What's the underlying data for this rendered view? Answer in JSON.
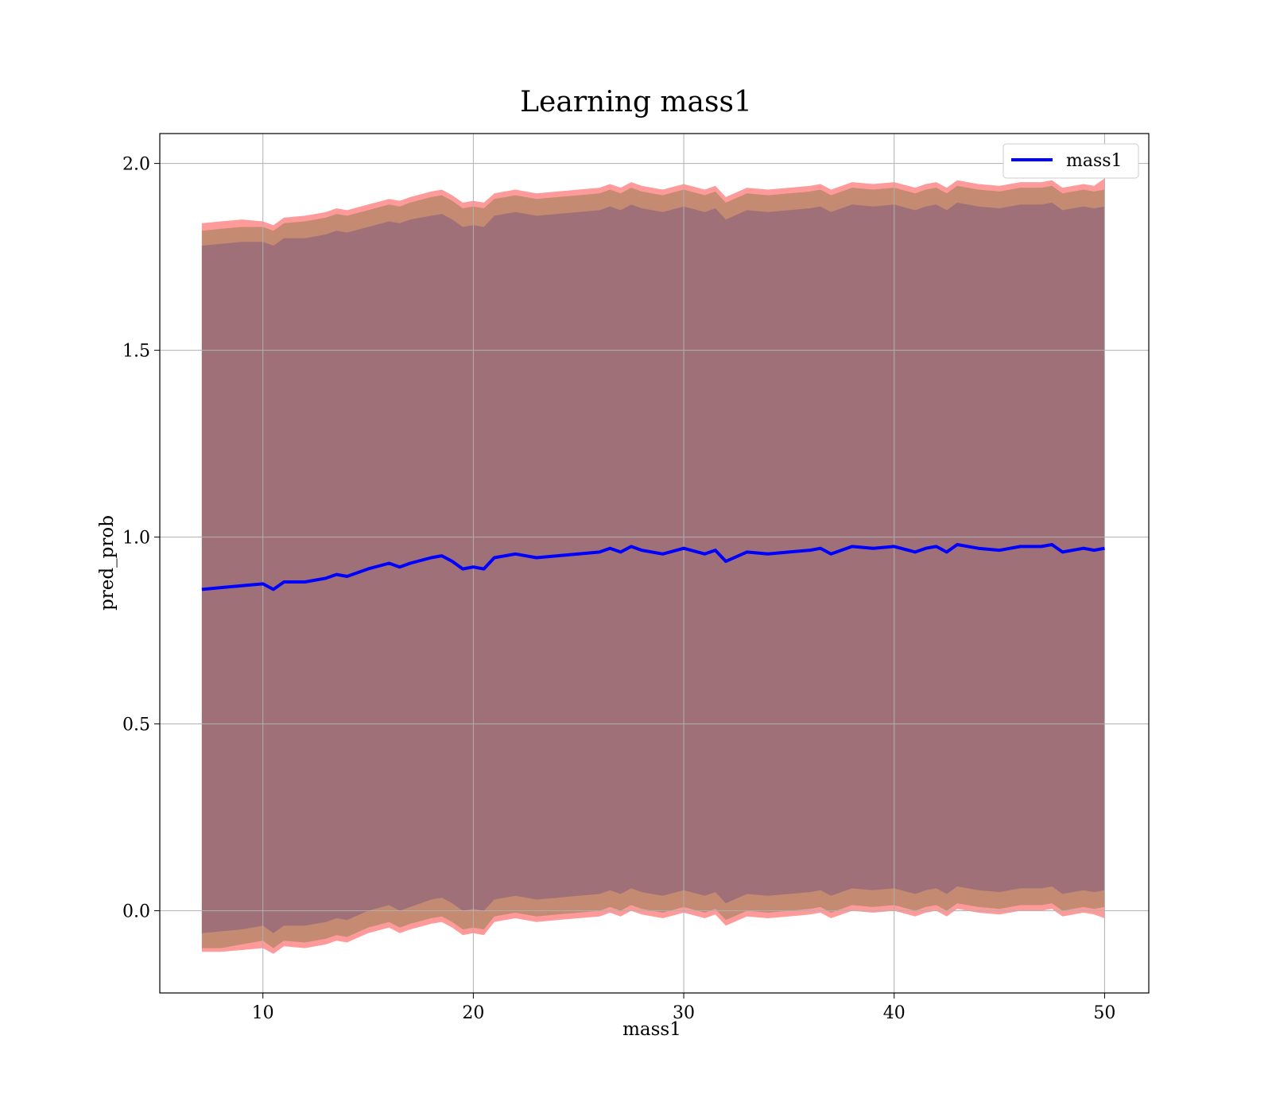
{
  "chart_data": {
    "type": "line",
    "title": "Learning mass1",
    "xlabel": "mass1",
    "ylabel": "pred_prob",
    "xlim": [
      5.1,
      52.1
    ],
    "ylim": [
      -0.22,
      2.08
    ],
    "xticks": [
      10,
      20,
      30,
      40,
      50
    ],
    "yticks": [
      0.0,
      0.5,
      1.0,
      1.5,
      2.0
    ],
    "xtick_labels": [
      "10",
      "20",
      "30",
      "40",
      "50"
    ],
    "ytick_labels": [
      "0.0",
      "0.5",
      "1.0",
      "1.5",
      "2.0"
    ],
    "grid": true,
    "legend_position": "top-right",
    "legend": [
      "mass1"
    ],
    "series": [
      {
        "name": "mass1",
        "color": "#0000ff",
        "x": [
          7.1,
          8.0,
          9.0,
          10.0,
          10.5,
          11.0,
          12.0,
          13.0,
          13.5,
          14.0,
          15.0,
          16.0,
          16.5,
          17.0,
          18.0,
          18.5,
          19.0,
          19.5,
          20.0,
          20.5,
          21.0,
          22.0,
          23.0,
          24.0,
          25.0,
          26.0,
          26.5,
          27.0,
          27.5,
          28.0,
          29.0,
          30.0,
          31.0,
          31.5,
          32.0,
          33.0,
          34.0,
          35.0,
          36.0,
          36.5,
          37.0,
          38.0,
          39.0,
          40.0,
          41.0,
          41.5,
          42.0,
          42.5,
          43.0,
          44.0,
          45.0,
          46.0,
          47.0,
          47.5,
          48.0,
          49.0,
          49.5,
          50.0
        ],
        "mean": [
          0.86,
          0.865,
          0.87,
          0.875,
          0.86,
          0.88,
          0.88,
          0.89,
          0.9,
          0.895,
          0.915,
          0.93,
          0.92,
          0.93,
          0.945,
          0.95,
          0.935,
          0.915,
          0.92,
          0.915,
          0.945,
          0.955,
          0.945,
          0.95,
          0.955,
          0.96,
          0.97,
          0.96,
          0.975,
          0.965,
          0.955,
          0.97,
          0.955,
          0.965,
          0.935,
          0.96,
          0.955,
          0.96,
          0.965,
          0.97,
          0.955,
          0.975,
          0.97,
          0.975,
          0.96,
          0.97,
          0.975,
          0.96,
          0.98,
          0.97,
          0.965,
          0.975,
          0.975,
          0.98,
          0.96,
          0.97,
          0.965,
          0.97
        ],
        "std1_upper": [
          1.78,
          1.785,
          1.79,
          1.79,
          1.78,
          1.8,
          1.8,
          1.81,
          1.82,
          1.815,
          1.83,
          1.845,
          1.84,
          1.85,
          1.86,
          1.865,
          1.85,
          1.83,
          1.835,
          1.83,
          1.86,
          1.87,
          1.86,
          1.865,
          1.87,
          1.875,
          1.885,
          1.875,
          1.89,
          1.88,
          1.87,
          1.885,
          1.87,
          1.88,
          1.85,
          1.875,
          1.87,
          1.875,
          1.88,
          1.885,
          1.87,
          1.89,
          1.885,
          1.89,
          1.875,
          1.885,
          1.89,
          1.875,
          1.895,
          1.885,
          1.88,
          1.89,
          1.89,
          1.895,
          1.875,
          1.885,
          1.88,
          1.885
        ],
        "std1_lower": [
          -0.06,
          -0.055,
          -0.05,
          -0.04,
          -0.06,
          -0.04,
          -0.04,
          -0.03,
          -0.02,
          -0.025,
          0.0,
          0.015,
          0.0,
          0.01,
          0.03,
          0.035,
          0.02,
          0.0,
          0.005,
          0.0,
          0.03,
          0.04,
          0.03,
          0.035,
          0.04,
          0.045,
          0.055,
          0.045,
          0.06,
          0.05,
          0.04,
          0.055,
          0.04,
          0.05,
          0.02,
          0.045,
          0.04,
          0.045,
          0.05,
          0.055,
          0.04,
          0.06,
          0.055,
          0.06,
          0.045,
          0.055,
          0.06,
          0.045,
          0.065,
          0.055,
          0.05,
          0.06,
          0.06,
          0.065,
          0.045,
          0.055,
          0.05,
          0.055
        ],
        "std2_upper": [
          1.82,
          1.825,
          1.83,
          1.83,
          1.82,
          1.84,
          1.845,
          1.855,
          1.865,
          1.86,
          1.875,
          1.89,
          1.885,
          1.895,
          1.91,
          1.915,
          1.9,
          1.88,
          1.885,
          1.88,
          1.905,
          1.915,
          1.905,
          1.91,
          1.915,
          1.92,
          1.93,
          1.92,
          1.935,
          1.925,
          1.915,
          1.93,
          1.915,
          1.925,
          1.895,
          1.92,
          1.915,
          1.92,
          1.925,
          1.93,
          1.915,
          1.935,
          1.93,
          1.935,
          1.92,
          1.93,
          1.935,
          1.92,
          1.94,
          1.93,
          1.925,
          1.935,
          1.935,
          1.94,
          1.92,
          1.93,
          1.925,
          1.93
        ],
        "std2_lower": [
          -0.1,
          -0.1,
          -0.09,
          -0.08,
          -0.1,
          -0.08,
          -0.085,
          -0.075,
          -0.065,
          -0.07,
          -0.045,
          -0.03,
          -0.045,
          -0.035,
          -0.02,
          -0.015,
          -0.03,
          -0.05,
          -0.045,
          -0.05,
          -0.015,
          -0.005,
          -0.015,
          -0.01,
          -0.005,
          0.0,
          0.01,
          0.0,
          0.015,
          0.005,
          -0.005,
          0.01,
          -0.005,
          0.005,
          -0.025,
          0.0,
          -0.005,
          0.0,
          0.005,
          0.01,
          -0.005,
          0.015,
          0.01,
          0.015,
          0.0,
          0.01,
          0.015,
          0.0,
          0.02,
          0.01,
          0.005,
          0.015,
          0.015,
          0.02,
          0.0,
          0.01,
          0.005,
          0.01
        ],
        "std3_upper": [
          1.84,
          1.845,
          1.85,
          1.845,
          1.835,
          1.855,
          1.86,
          1.87,
          1.88,
          1.875,
          1.89,
          1.905,
          1.9,
          1.91,
          1.925,
          1.93,
          1.915,
          1.895,
          1.9,
          1.895,
          1.92,
          1.93,
          1.92,
          1.925,
          1.93,
          1.935,
          1.945,
          1.935,
          1.95,
          1.94,
          1.93,
          1.945,
          1.93,
          1.94,
          1.91,
          1.935,
          1.93,
          1.935,
          1.94,
          1.945,
          1.93,
          1.95,
          1.945,
          1.95,
          1.935,
          1.945,
          1.95,
          1.935,
          1.955,
          1.945,
          1.94,
          1.95,
          1.95,
          1.955,
          1.935,
          1.945,
          1.94,
          1.96
        ],
        "std3_lower": [
          -0.11,
          -0.11,
          -0.105,
          -0.1,
          -0.115,
          -0.095,
          -0.1,
          -0.09,
          -0.08,
          -0.085,
          -0.06,
          -0.045,
          -0.06,
          -0.05,
          -0.035,
          -0.03,
          -0.045,
          -0.065,
          -0.06,
          -0.065,
          -0.03,
          -0.02,
          -0.03,
          -0.025,
          -0.02,
          -0.015,
          -0.005,
          -0.015,
          0.0,
          -0.01,
          -0.02,
          -0.005,
          -0.02,
          -0.01,
          -0.04,
          -0.015,
          -0.02,
          -0.015,
          -0.01,
          -0.005,
          -0.02,
          0.0,
          -0.005,
          0.0,
          -0.015,
          -0.005,
          0.0,
          -0.015,
          0.005,
          -0.005,
          -0.01,
          0.0,
          0.0,
          0.005,
          -0.015,
          -0.005,
          -0.01,
          -0.02
        ]
      }
    ],
    "band_colors": {
      "outer": "#ff9a9a",
      "middle": "#c48a72",
      "inner": "#a07078"
    },
    "line_color": "#0000ff"
  }
}
